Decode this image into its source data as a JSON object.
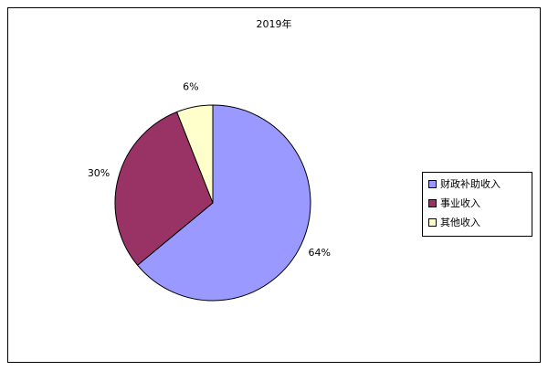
{
  "chart_data": {
    "type": "pie",
    "title": "2019年",
    "categories": [
      "财政补助收入",
      "事业收入",
      "其他收入"
    ],
    "values": [
      64,
      30,
      6
    ],
    "value_labels": [
      "64%",
      "30%",
      "6%"
    ],
    "colors": [
      "#9999ff",
      "#993366",
      "#ffffcc"
    ],
    "legend": "right"
  }
}
